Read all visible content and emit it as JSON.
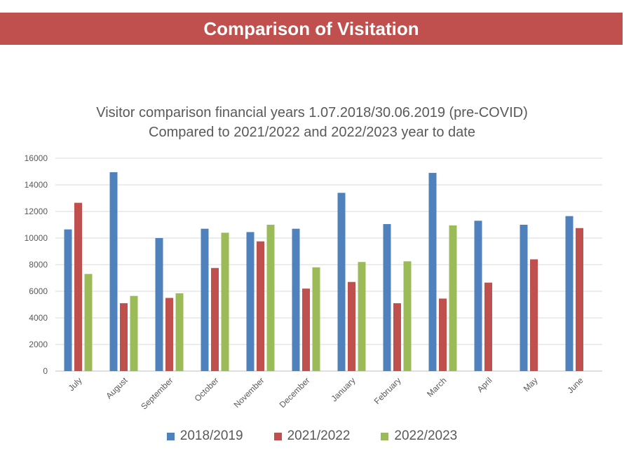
{
  "banner": {
    "title": "Comparison of Visitation"
  },
  "chart_data": {
    "type": "bar",
    "title": "Visitor comparison financial years 1.07.2018/30.06.2019 (pre-COVID)",
    "subtitle": "Compared to 2021/2022 and 2022/2023 year to date",
    "categories": [
      "July",
      "August",
      "September",
      "October",
      "November",
      "December",
      "January",
      "February",
      "March",
      "April",
      "May",
      "June"
    ],
    "series": [
      {
        "name": "2018/2019",
        "color": "#4f81bd",
        "values": [
          10650,
          14950,
          10000,
          10700,
          10450,
          10700,
          13400,
          11050,
          14900,
          11300,
          11000,
          11650
        ]
      },
      {
        "name": "2021/2022",
        "color": "#c0504d",
        "values": [
          12650,
          5100,
          5500,
          7750,
          9750,
          6200,
          6700,
          5100,
          5450,
          6650,
          8400,
          10750
        ]
      },
      {
        "name": "2022/2023",
        "color": "#9bbb59",
        "values": [
          7300,
          5650,
          5850,
          10400,
          11000,
          7800,
          8200,
          8250,
          10950,
          null,
          null,
          null
        ]
      }
    ],
    "ylim": [
      0,
      16000
    ],
    "yticks": [
      0,
      2000,
      4000,
      6000,
      8000,
      10000,
      12000,
      14000,
      16000
    ],
    "grid": true,
    "legend": "bottom"
  }
}
